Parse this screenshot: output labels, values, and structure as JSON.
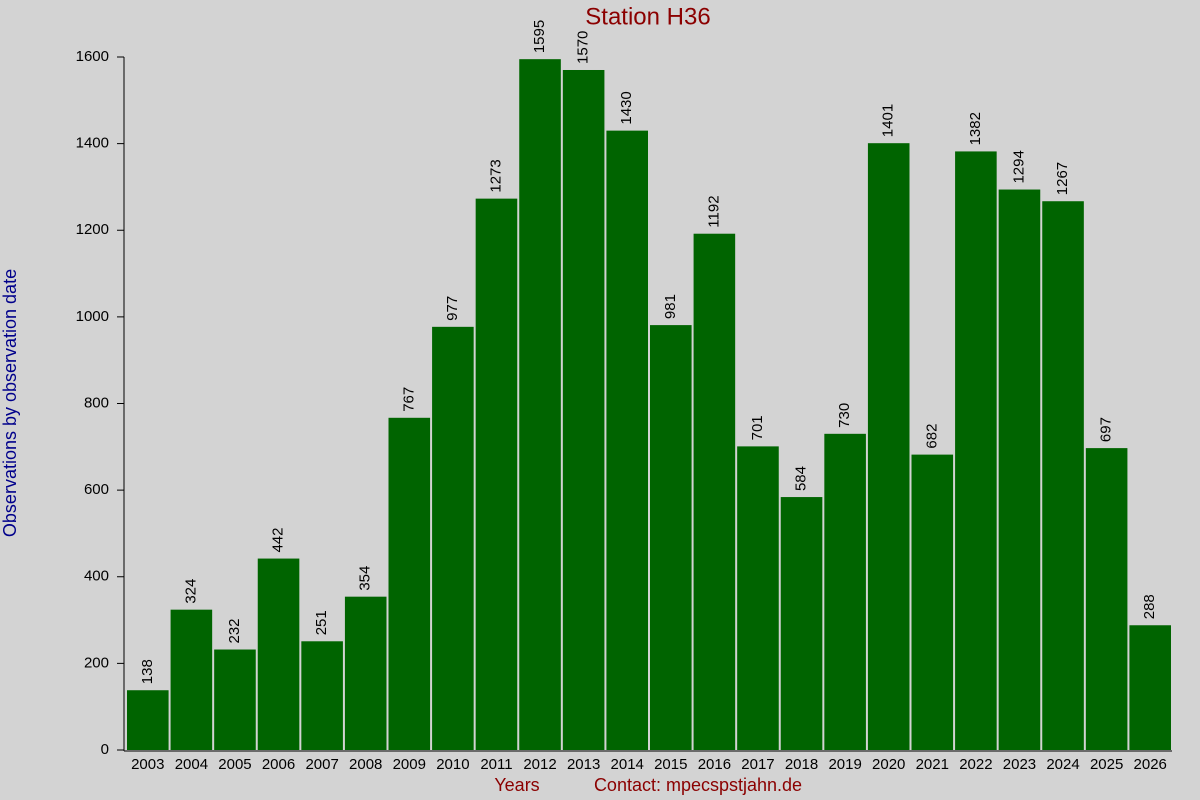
{
  "chart_data": {
    "type": "bar",
    "title": "Station H36",
    "y_label": "Observations by observation date",
    "x_label": "Years",
    "contact": "Contact: mpecspstjahn.de",
    "categories": [
      "2003",
      "2004",
      "2005",
      "2006",
      "2007",
      "2008",
      "2009",
      "2010",
      "2011",
      "2012",
      "2013",
      "2014",
      "2015",
      "2016",
      "2017",
      "2018",
      "2019",
      "2020",
      "2021",
      "2022",
      "2023",
      "2024",
      "2025",
      "2026"
    ],
    "values": [
      138,
      324,
      232,
      442,
      251,
      354,
      767,
      977,
      1273,
      1595,
      1570,
      1430,
      981,
      1192,
      701,
      584,
      730,
      1401,
      682,
      1382,
      1294,
      1267,
      697,
      288
    ],
    "color": "#006400",
    "ylim": [
      0,
      1600
    ],
    "yticks": [
      0,
      200,
      400,
      600,
      800,
      1000,
      1200,
      1400,
      1600
    ],
    "grid": false
  }
}
